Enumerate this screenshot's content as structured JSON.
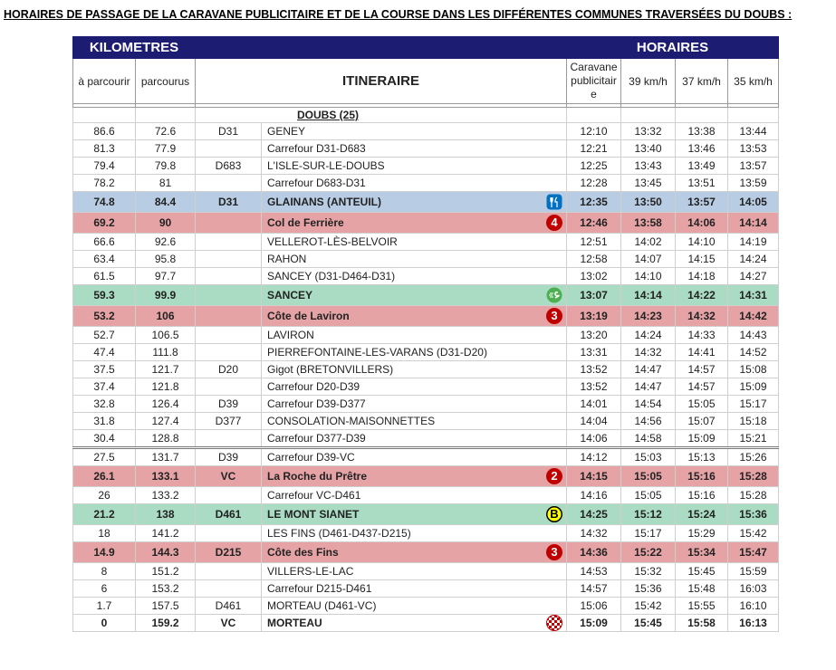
{
  "title": "HORAIRES DE PASSAGE DE LA CARAVANE PUBLICITAIRE ET DE LA COURSE DANS LES DIFFÉRENTES COMMUNES TRAVERSÉES DU DOUBS :",
  "table": {
    "header": {
      "kilometres": "KILOMETRES",
      "horaires": "HORAIRES",
      "remaining": "à parcourir",
      "done": "parcourus",
      "itinerary": "ITINERAIRE",
      "caravan": "Caravane publicitaire",
      "t39": "39 km/h",
      "t37": "37 km/h",
      "t35": "35 km/h"
    },
    "section": "DOUBS (25)",
    "rows": [
      {
        "cells": [
          "86.6",
          "72.6",
          "D31",
          "GENEY",
          "12:10",
          "13:32",
          "13:38",
          "13:44"
        ]
      },
      {
        "cells": [
          "81.3",
          "77.9",
          "",
          "Carrefour D31-D683",
          "12:21",
          "13:40",
          "13:46",
          "13:53"
        ]
      },
      {
        "cells": [
          "79.4",
          "79.8",
          "D683",
          "L'ISLE-SUR-LE-DOUBS",
          "12:25",
          "13:43",
          "13:49",
          "13:57"
        ]
      },
      {
        "cells": [
          "78.2",
          "81",
          "",
          "Carrefour D683-D31",
          "12:28",
          "13:45",
          "13:51",
          "13:59"
        ]
      },
      {
        "cells": [
          "74.8",
          "84.4",
          "D31",
          "GLAINANS (ANTEUIL)",
          "12:35",
          "13:50",
          "13:57",
          "14:05"
        ],
        "color": "#b8cce4",
        "bold": true,
        "icon": "feed"
      },
      {
        "cells": [
          "69.2",
          "90",
          "",
          "Col de Ferrière",
          "12:46",
          "13:58",
          "14:06",
          "14:14"
        ],
        "color": "#e6a3a6",
        "bold": true,
        "badge": "4",
        "badge_color": "#c00000"
      },
      {
        "cells": [
          "66.6",
          "92.6",
          "",
          "VELLEROT-LÈS-BELVOIR",
          "12:51",
          "14:02",
          "14:10",
          "14:19"
        ]
      },
      {
        "cells": [
          "63.4",
          "95.8",
          "",
          "RAHON",
          "12:58",
          "14:07",
          "14:15",
          "14:24"
        ]
      },
      {
        "cells": [
          "61.5",
          "97.7",
          "",
          "SANCEY (D31-D464-D31)",
          "13:02",
          "14:10",
          "14:18",
          "14:27"
        ]
      },
      {
        "cells": [
          "59.3",
          "99.9",
          "",
          "SANCEY",
          "13:07",
          "14:14",
          "14:22",
          "14:31"
        ],
        "color": "#a9dcc2",
        "bold": true,
        "icon": "sprint"
      },
      {
        "cells": [
          "53.2",
          "106",
          "",
          "Côte de Laviron",
          "13:19",
          "14:23",
          "14:32",
          "14:42"
        ],
        "color": "#e6a3a6",
        "bold": true,
        "badge": "3",
        "badge_color": "#c00000"
      },
      {
        "cells": [
          "52.7",
          "106.5",
          "",
          "LAVIRON",
          "13:20",
          "14:24",
          "14:33",
          "14:43"
        ]
      },
      {
        "cells": [
          "47.4",
          "111.8",
          "",
          "PIERREFONTAINE-LES-VARANS (D31-D20)",
          "13:31",
          "14:32",
          "14:41",
          "14:52"
        ]
      },
      {
        "cells": [
          "37.5",
          "121.7",
          "D20",
          "Gigot (BRETONVILLERS)",
          "13:52",
          "14:47",
          "14:57",
          "15:08"
        ]
      },
      {
        "cells": [
          "37.4",
          "121.8",
          "",
          "Carrefour D20-D39",
          "13:52",
          "14:47",
          "14:57",
          "15:09"
        ]
      },
      {
        "cells": [
          "32.8",
          "126.4",
          "D39",
          "Carrefour D39-D377",
          "14:01",
          "14:54",
          "15:05",
          "15:17"
        ]
      },
      {
        "cells": [
          "31.8",
          "127.4",
          "D377",
          "CONSOLATION-MAISONNETTES",
          "14:04",
          "14:56",
          "15:07",
          "15:18"
        ]
      },
      {
        "cells": [
          "30.4",
          "128.8",
          "",
          "Carrefour D377-D39",
          "14:06",
          "14:58",
          "15:09",
          "15:21"
        ]
      },
      {
        "cells": [
          "27.5",
          "131.7",
          "D39",
          "Carrefour D39-VC",
          "14:12",
          "15:03",
          "15:13",
          "15:26"
        ],
        "separator_before": true
      },
      {
        "cells": [
          "26.1",
          "133.1",
          "VC",
          "La Roche du Prêtre",
          "14:15",
          "15:05",
          "15:16",
          "15:28"
        ],
        "color": "#e6a3a6",
        "bold": true,
        "badge": "2",
        "badge_color": "#c00000"
      },
      {
        "cells": [
          "26",
          "133.2",
          "",
          "Carrefour VC-D461",
          "14:16",
          "15:05",
          "15:16",
          "15:28"
        ]
      },
      {
        "cells": [
          "21.2",
          "138",
          "D461",
          "LE MONT SIANET",
          "14:25",
          "15:12",
          "15:24",
          "15:36"
        ],
        "color": "#a9dcc2",
        "bold": true,
        "badge": "B",
        "badge_color": "#ffff00"
      },
      {
        "cells": [
          "18",
          "141.2",
          "",
          "LES FINS (D461-D437-D215)",
          "14:32",
          "15:17",
          "15:29",
          "15:42"
        ]
      },
      {
        "cells": [
          "14.9",
          "144.3",
          "D215",
          "Côte des Fins",
          "14:36",
          "15:22",
          "15:34",
          "15:47"
        ],
        "color": "#e6a3a6",
        "bold": true,
        "badge": "3",
        "badge_color": "#c00000"
      },
      {
        "cells": [
          "8",
          "151.2",
          "",
          "VILLERS-LE-LAC",
          "14:53",
          "15:32",
          "15:45",
          "15:59"
        ]
      },
      {
        "cells": [
          "6",
          "153.2",
          "",
          "Carrefour D215-D461",
          "14:57",
          "15:36",
          "15:48",
          "16:03"
        ]
      },
      {
        "cells": [
          "1.7",
          "157.5",
          "D461",
          "MORTEAU (D461-VC)",
          "15:06",
          "15:42",
          "15:55",
          "16:10"
        ]
      },
      {
        "cells": [
          "0",
          "159.2",
          "VC",
          "MORTEAU",
          "15:09",
          "15:45",
          "15:58",
          "16:13"
        ],
        "bold": true,
        "icon": "finish"
      }
    ]
  }
}
